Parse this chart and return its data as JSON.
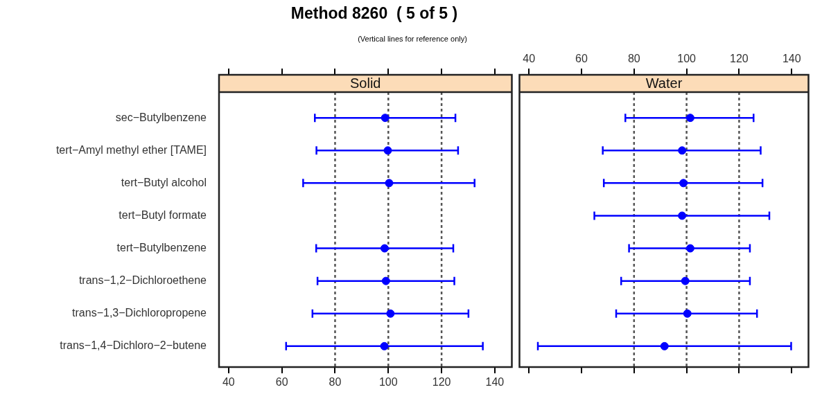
{
  "chart_data": [
    {
      "type": "scatter",
      "title": "Solid",
      "orientation": "horizontal",
      "annotations": [
        "Method 8260  ( 5 of 5 )",
        "(Vertical lines for reference only)"
      ],
      "categories": [
        "sec−Butylbenzene",
        "tert−Amyl methyl ether [TAME]",
        "tert−Butyl alcohol",
        "tert−Butyl formate",
        "tert−Butylbenzene",
        "trans−1,2−Dichloroethene",
        "trans−1,3−Dichloropropene",
        "trans−1,4−Dichloro−2−butene"
      ],
      "values": [
        98.8,
        99.8,
        100.3,
        null,
        98.6,
        99.1,
        100.8,
        98.5
      ],
      "errors": [
        [
          72.4,
          125.2
        ],
        [
          73.0,
          126.2
        ],
        [
          68.0,
          132.4
        ],
        null,
        [
          72.9,
          124.4
        ],
        [
          73.4,
          124.8
        ],
        [
          71.5,
          130.1
        ],
        [
          61.6,
          135.5
        ]
      ],
      "color": "#0000ff",
      "marker": "circle",
      "xlim": [
        36.4,
        146.4
      ],
      "xticks": [
        40,
        60,
        80,
        100,
        120,
        140
      ],
      "ref_lines": [
        {
          "axis": "x",
          "value": 80,
          "color": "#555555",
          "line_style": "dashed"
        },
        {
          "axis": "x",
          "value": 100,
          "color": "#555555",
          "line_style": "dashed"
        },
        {
          "axis": "x",
          "value": 120,
          "color": "#555555",
          "line_style": "dashed"
        }
      ],
      "grid": false,
      "legend": false
    },
    {
      "type": "scatter",
      "title": "Water",
      "orientation": "horizontal",
      "values": [
        101.4,
        98.3,
        98.8,
        98.3,
        101.4,
        99.5,
        100.3,
        91.6
      ],
      "errors": [
        [
          76.7,
          125.5
        ],
        [
          68.1,
          128.2
        ],
        [
          68.5,
          128.9
        ],
        [
          64.9,
          131.5
        ],
        [
          78.1,
          124.1
        ],
        [
          75.1,
          124.1
        ],
        [
          73.2,
          126.8
        ],
        [
          43.4,
          139.8
        ]
      ],
      "color": "#0000ff",
      "marker": "circle",
      "xlim": [
        36.4,
        146.4
      ],
      "xticks": [
        40,
        60,
        80,
        100,
        120,
        140
      ],
      "ref_lines": [
        {
          "axis": "x",
          "value": 80,
          "color": "#555555",
          "line_style": "dashed"
        },
        {
          "axis": "x",
          "value": 100,
          "color": "#555555",
          "line_style": "dashed"
        },
        {
          "axis": "x",
          "value": 120,
          "color": "#555555",
          "line_style": "dashed"
        }
      ],
      "grid": false,
      "legend": false
    }
  ]
}
